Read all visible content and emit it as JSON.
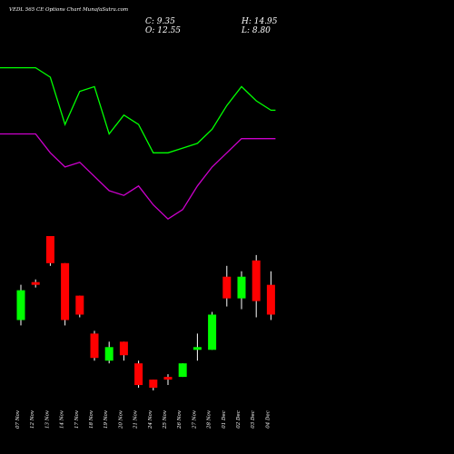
{
  "header": {
    "title": "VEDL 565 CE Options  Chart MunafaSutra.com",
    "c": "C: 9.35",
    "h": "H: 14.95",
    "o": "O: 12.55",
    "l": "L: 8.80"
  },
  "colors": {
    "background": "#000000",
    "up": "#00ff00",
    "down": "#ff0000",
    "line_upper": "#00ff00",
    "line_lower": "#cc00cc",
    "text": "#ffffff"
  },
  "chart_data": {
    "type": "candlestick",
    "dates": [
      "07 Nov",
      "12 Nov",
      "13 Nov",
      "14 Nov",
      "17 Nov",
      "18 Nov",
      "19 Nov",
      "20 Nov",
      "21 Nov",
      "24 Nov",
      "25 Nov",
      "26 Nov",
      "27 Nov",
      "28 Nov",
      "01 Dec",
      "02 Dec",
      "03 Dec",
      "04 Dec"
    ],
    "ohlc": [
      {
        "o": 9.4,
        "h": 10.7,
        "l": 9.2,
        "c": 10.5,
        "dir": "up"
      },
      {
        "o": 10.8,
        "h": 10.9,
        "l": 10.6,
        "c": 10.7,
        "dir": "down"
      },
      {
        "o": 12.5,
        "h": 12.5,
        "l": 11.4,
        "c": 11.5,
        "dir": "down"
      },
      {
        "o": 11.5,
        "h": 11.5,
        "l": 9.2,
        "c": 9.4,
        "dir": "down"
      },
      {
        "o": 10.3,
        "h": 10.3,
        "l": 9.5,
        "c": 9.6,
        "dir": "down"
      },
      {
        "o": 8.9,
        "h": 9.0,
        "l": 7.9,
        "c": 8.0,
        "dir": "down"
      },
      {
        "o": 7.9,
        "h": 8.6,
        "l": 7.8,
        "c": 8.4,
        "dir": "up"
      },
      {
        "o": 8.6,
        "h": 8.6,
        "l": 7.9,
        "c": 8.1,
        "dir": "down"
      },
      {
        "o": 7.8,
        "h": 7.9,
        "l": 6.9,
        "c": 7.0,
        "dir": "down"
      },
      {
        "o": 7.2,
        "h": 7.2,
        "l": 6.8,
        "c": 6.9,
        "dir": "down"
      },
      {
        "o": 7.3,
        "h": 7.4,
        "l": 7.0,
        "c": 7.2,
        "dir": "down"
      },
      {
        "o": 7.3,
        "h": 7.8,
        "l": 7.3,
        "c": 7.8,
        "dir": "up"
      },
      {
        "o": 8.3,
        "h": 8.9,
        "l": 7.9,
        "c": 8.4,
        "dir": "up"
      },
      {
        "o": 8.3,
        "h": 9.7,
        "l": 8.3,
        "c": 9.6,
        "dir": "up"
      },
      {
        "o": 11.0,
        "h": 11.4,
        "l": 9.9,
        "c": 10.2,
        "dir": "down"
      },
      {
        "o": 10.2,
        "h": 11.2,
        "l": 9.8,
        "c": 11.0,
        "dir": "up"
      },
      {
        "o": 11.6,
        "h": 11.8,
        "l": 9.5,
        "c": 10.1,
        "dir": "down"
      },
      {
        "o": 10.7,
        "h": 11.2,
        "l": 9.4,
        "c": 9.6,
        "dir": "down"
      }
    ],
    "series": [
      {
        "values": [
          13.3,
          13.3,
          13.1,
          12.1,
          12.8,
          12.9,
          11.9,
          12.3,
          12.1,
          11.5,
          11.5,
          11.6,
          11.7,
          12.0,
          12.5,
          12.9,
          12.6,
          12.4
        ]
      },
      {
        "values": [
          11.9,
          11.9,
          11.5,
          11.2,
          11.3,
          11.0,
          10.7,
          10.6,
          10.8,
          10.4,
          10.1,
          10.3,
          10.8,
          11.2,
          11.5,
          11.8,
          11.8,
          11.8
        ]
      }
    ]
  }
}
